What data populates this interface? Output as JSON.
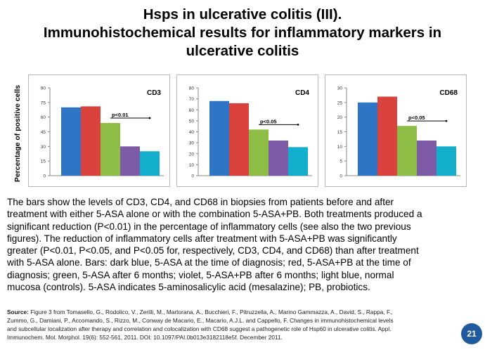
{
  "title": {
    "lines": [
      "Hsps in ulcerative colitis (III).",
      "Immunohistochemical results for inflammatory markers in",
      "ulcerative colitis"
    ]
  },
  "ylabel": "Percentage of positive cells",
  "colors": {
    "series": [
      "#2e75c5",
      "#d9423d",
      "#8ebd45",
      "#7d5ba6",
      "#12aecb"
    ],
    "axis": "#8a8a8a",
    "gridline": "#e0e0e0",
    "badge": "#1f5b9e"
  },
  "chart_data": [
    {
      "type": "bar",
      "title": "CD3",
      "ylim": [
        0,
        90
      ],
      "yticks": [
        0,
        15,
        30,
        45,
        60,
        75,
        90
      ],
      "values": [
        70,
        71,
        54,
        30,
        25
      ],
      "annotation": "p<0.01",
      "grid": false
    },
    {
      "type": "bar",
      "title": "CD4",
      "ylim": [
        0,
        80
      ],
      "yticks": [
        0,
        10,
        20,
        30,
        40,
        50,
        60,
        70,
        80
      ],
      "values": [
        68,
        66,
        42,
        32,
        26
      ],
      "annotation": "p<0.05",
      "grid": false
    },
    {
      "type": "bar",
      "title": "CD68",
      "ylim": [
        0,
        30
      ],
      "yticks": [
        0,
        5,
        10,
        15,
        20,
        25,
        30
      ],
      "values": [
        25,
        27,
        17,
        12,
        10
      ],
      "annotation": "p<0.05",
      "grid": false
    }
  ],
  "body_text": [
    "The bars show the levels of CD3, CD4, and CD68 in biopsies from patients before and after",
    "treatment with either 5-ASA alone or with the combination 5-ASA+PB. Both treatments produced a",
    "significant reduction (P<0.01) in the percentage of inflammatory cells (see also the two previous",
    "figures). The reduction of inflammatory cells after treatment with 5-ASA+PB was significantly",
    "greater (P<0.01, P<0.05, and P<0.05 for, respectively, CD3, CD4, and CD68) than after treatment",
    "with 5-ASA alone. Bars: dark blue, 5-ASA at the time of diagnosis; red, 5-ASA+PB at the time of",
    "diagnosis; green, 5-ASA after 6 months; violet, 5-ASA+PB after 6 months; light blue, normal",
    "mucosa (controls). 5-ASA indicates 5-aminosalicylic acid (mesalazine); PB, probiotics."
  ],
  "source": {
    "label": "Source:",
    "lines": [
      " Figure 3 from Tomasello, G., Rodolico, V., Zerilli, M., Martorana, A., Bucchieri, F., Pitruzzella, A., Marino Gammazza, A., David, S., Rappa, F.,",
      "Zummo, G., Damiani, P., Accomando, S., Rizzo, M., Conway de Macario, E., Macario, A.J.L. and Cappello, F.  Changes in immunohistochemical levels",
      "and subcellular localization after therapy and correlation and colocalization with CD68 suggest a pathogenetic role of Hsp60 in ulcerative colitis.  Appl.",
      "Immunochem. Mol. Morphol. 19(6): 552-561, 2011. DOI: 10.1097/PAI.0b013e3182118e5f. December 2011."
    ]
  },
  "page_number": "21"
}
